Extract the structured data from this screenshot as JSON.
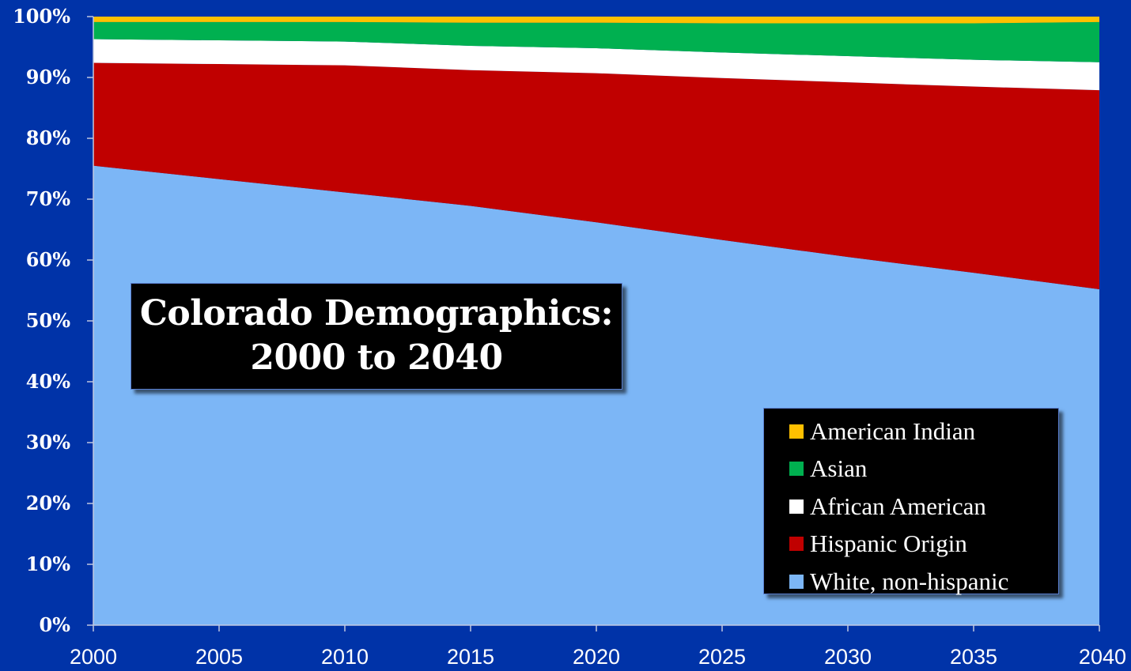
{
  "chart_data": {
    "type": "area",
    "stacked": true,
    "title": "Colorado Demographics: 2000 to 2040",
    "title_lines": [
      "Colorado Demographics:",
      "2000 to 2040"
    ],
    "x": [
      2000,
      2005,
      2010,
      2015,
      2020,
      2025,
      2030,
      2035,
      2040
    ],
    "xlim": [
      2000,
      2040
    ],
    "ylim": [
      0,
      100
    ],
    "yticks": [
      0,
      10,
      20,
      30,
      40,
      50,
      60,
      70,
      80,
      90,
      100
    ],
    "ytick_labels": [
      "0%",
      "10%",
      "20%",
      "30%",
      "40%",
      "50%",
      "60%",
      "70%",
      "80%",
      "90%",
      "100%"
    ],
    "xtick_labels": [
      "2000",
      "2005",
      "2010",
      "2015",
      "2020",
      "2025",
      "2030",
      "2035",
      "2040"
    ],
    "grid": false,
    "legend_position": "bottom-right",
    "series": [
      {
        "name": "White, non-hispanic",
        "color": "#7cb6f6",
        "values": [
          75.5,
          73.3,
          71.1,
          68.9,
          66.2,
          63.3,
          60.5,
          57.9,
          55.2
        ]
      },
      {
        "name": "Hispanic Origin",
        "color": "#c00000",
        "values": [
          16.9,
          18.9,
          20.9,
          22.3,
          24.5,
          26.6,
          28.7,
          30.6,
          32.7
        ]
      },
      {
        "name": "African American",
        "color": "#ffffff",
        "values": [
          3.9,
          3.9,
          3.9,
          4.0,
          4.1,
          4.2,
          4.3,
          4.4,
          4.6
        ]
      },
      {
        "name": "Asian",
        "color": "#00b050",
        "values": [
          2.8,
          3.0,
          3.2,
          3.8,
          4.2,
          4.8,
          5.4,
          6.0,
          6.6
        ]
      },
      {
        "name": "American Indian",
        "color": "#ffc000",
        "values": [
          0.9,
          0.9,
          0.9,
          1.0,
          1.0,
          1.1,
          1.1,
          1.1,
          0.9
        ]
      }
    ]
  },
  "legend": {
    "items": [
      {
        "label": "American Indian",
        "color": "#ffc000"
      },
      {
        "label": "Asian",
        "color": "#00b050"
      },
      {
        "label": "African American",
        "color": "#ffffff"
      },
      {
        "label": "Hispanic Origin",
        "color": "#c00000"
      },
      {
        "label": "White, non-hispanic",
        "color": "#7cb6f6"
      }
    ]
  }
}
